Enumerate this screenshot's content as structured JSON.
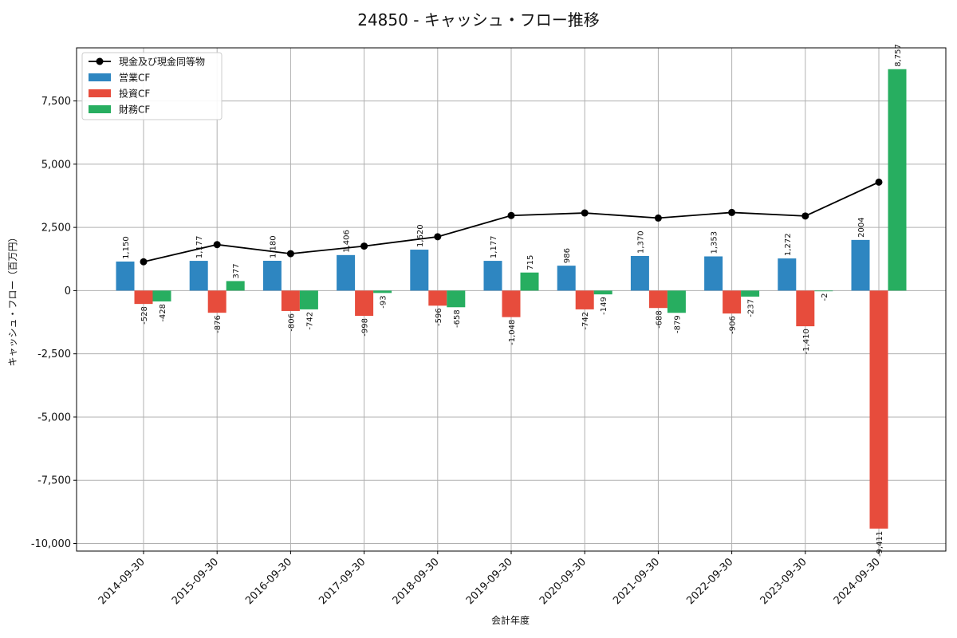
{
  "chart_data": {
    "type": "bar",
    "title": "24850 - キャッシュ・フロー推移",
    "xlabel": "会計年度",
    "ylabel": "キャッシュ・フロー（百万円）",
    "ylim": [
      -10300,
      9600
    ],
    "yticks": [
      -10000,
      -7500,
      -5000,
      -2500,
      0,
      2500,
      5000,
      7500
    ],
    "ytick_labels": [
      "-10,000",
      "-7,500",
      "-5,000",
      "-2,500",
      "0",
      "2,500",
      "5,000",
      "7,500"
    ],
    "grid": true,
    "legend_position": "top-left",
    "categories": [
      "2014-09-30",
      "2015-09-30",
      "2016-09-30",
      "2017-09-30",
      "2018-09-30",
      "2019-09-30",
      "2020-09-30",
      "2021-09-30",
      "2022-09-30",
      "2023-09-30",
      "2024-09-30"
    ],
    "series": [
      {
        "name": "営業CF",
        "kind": "bar",
        "color": "#2e86c1",
        "values": [
          1150,
          1177,
          1180,
          1406,
          1620,
          1177,
          986,
          1370,
          1353,
          1272,
          2004
        ],
        "labels": [
          "1,150",
          "1,177",
          "1,180",
          "1,406",
          "1,620",
          "1,177",
          "986",
          "1,370",
          "1,353",
          "1,272",
          "2004"
        ]
      },
      {
        "name": "投資CF",
        "kind": "bar",
        "color": "#e74c3c",
        "values": [
          -528,
          -876,
          -806,
          -998,
          -596,
          -1048,
          -742,
          -688,
          -906,
          -1410,
          -9411
        ],
        "labels": [
          "-528",
          "-876",
          "-806",
          "-998",
          "-596",
          "-1,048",
          "-742",
          "-688",
          "-906",
          "-1,410",
          "-9,411"
        ]
      },
      {
        "name": "財務CF",
        "kind": "bar",
        "color": "#27ae60",
        "values": [
          -428,
          377,
          -742,
          -93,
          -658,
          715,
          -149,
          -879,
          -237,
          -2,
          8757
        ],
        "labels": [
          "-428",
          "377",
          "-742",
          "-93",
          "-658",
          "715",
          "-149",
          "-879",
          "-237",
          "-2",
          "8,757"
        ]
      },
      {
        "name": "現金及び現金同等物",
        "kind": "line",
        "color": "#000000",
        "values": [
          1140,
          1820,
          1460,
          1760,
          2130,
          2970,
          3070,
          2870,
          3090,
          2950,
          4290
        ]
      }
    ]
  }
}
